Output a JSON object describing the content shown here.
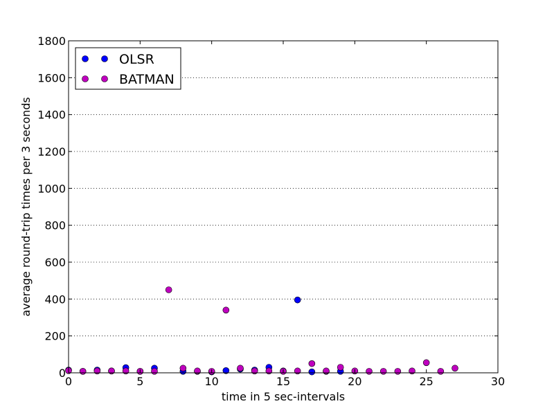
{
  "chart_data": {
    "type": "scatter",
    "title": "",
    "xlabel": "time in 5 sec-intervals",
    "ylabel": "average round-trip times per 3 seconds",
    "xlim": [
      0,
      30
    ],
    "ylim": [
      0,
      1800
    ],
    "xticks": [
      "0",
      "5",
      "10",
      "15",
      "20",
      "25",
      "30"
    ],
    "yticks": [
      "0",
      "200",
      "400",
      "600",
      "800",
      "1000",
      "1200",
      "1400",
      "1600",
      "1800"
    ],
    "grid": "y-dotted",
    "legend_position": "top-left",
    "series": [
      {
        "name": "OLSR",
        "color": "#0000ff",
        "points": [
          [
            0,
            15
          ],
          [
            1,
            8
          ],
          [
            2,
            15
          ],
          [
            3,
            10
          ],
          [
            4,
            28
          ],
          [
            5,
            8
          ],
          [
            6,
            25
          ],
          [
            8,
            8
          ],
          [
            9,
            8
          ],
          [
            10,
            5
          ],
          [
            11,
            12
          ],
          [
            12,
            20
          ],
          [
            13,
            15
          ],
          [
            14,
            30
          ],
          [
            15,
            10
          ],
          [
            16,
            395
          ],
          [
            17,
            5
          ],
          [
            18,
            8
          ],
          [
            19,
            8
          ]
        ]
      },
      {
        "name": "BATMAN",
        "color": "#bf00bf",
        "points": [
          [
            0,
            12
          ],
          [
            1,
            8
          ],
          [
            2,
            10
          ],
          [
            3,
            10
          ],
          [
            4,
            10
          ],
          [
            5,
            8
          ],
          [
            6,
            8
          ],
          [
            7,
            450
          ],
          [
            8,
            25
          ],
          [
            9,
            10
          ],
          [
            10,
            8
          ],
          [
            11,
            340
          ],
          [
            12,
            25
          ],
          [
            13,
            10
          ],
          [
            14,
            10
          ],
          [
            15,
            8
          ],
          [
            16,
            10
          ],
          [
            17,
            50
          ],
          [
            18,
            10
          ],
          [
            19,
            30
          ],
          [
            20,
            10
          ],
          [
            21,
            8
          ],
          [
            22,
            8
          ],
          [
            23,
            8
          ],
          [
            24,
            10
          ],
          [
            25,
            55
          ],
          [
            26,
            8
          ],
          [
            27,
            25
          ]
        ]
      }
    ]
  }
}
